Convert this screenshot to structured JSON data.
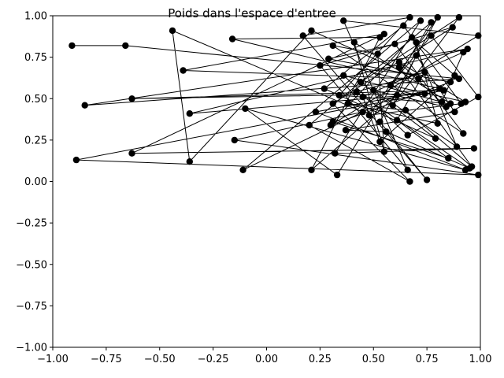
{
  "chart_data": {
    "type": "line",
    "title": "Poids dans l'espace d'entree",
    "xlabel": "",
    "ylabel": "",
    "xlim": [
      -1.0,
      1.0
    ],
    "ylim": [
      -1.0,
      1.0
    ],
    "xticks": [
      -1.0,
      -0.75,
      -0.5,
      -0.25,
      0.0,
      0.25,
      0.5,
      0.75,
      1.0
    ],
    "yticks": [
      -1.0,
      -0.75,
      -0.5,
      -0.25,
      0.0,
      0.25,
      0.5,
      0.75,
      1.0
    ],
    "xtick_labels": [
      "−1.00",
      "−0.75",
      "−0.50",
      "−0.25",
      "0.00",
      "0.25",
      "0.50",
      "0.75",
      "1.00"
    ],
    "ytick_labels": [
      "−1.00",
      "−0.75",
      "−0.50",
      "−0.25",
      "0.00",
      "0.25",
      "0.50",
      "0.75",
      "1.00"
    ],
    "grid": false,
    "line_color": "#000000",
    "marker": "circle",
    "series": [
      {
        "x": [
          -0.91,
          -0.66,
          0.9,
          -0.85,
          0.94,
          -0.36,
          0.74,
          -0.63,
          0.83,
          -0.89,
          0.99,
          -0.15,
          0.45,
          -0.44,
          -0.36,
          0.21,
          0.71,
          -0.39,
          0.55,
          -0.63,
          0.97,
          0.32,
          0.72,
          -0.11,
          0.61,
          0.21,
          0.53,
          -0.16,
          0.81,
          0.23,
          0.93,
          -0.1,
          0.33,
          0.77,
          0.2,
          0.67,
          0.31,
          0.87,
          0.25,
          0.66,
          0.36,
          0.99,
          0.3,
          0.86,
          0.29,
          0.6,
          0.92,
          0.31,
          0.52,
          0.55,
          0.41,
          0.86,
          0.34,
          0.67,
          0.17,
          0.75,
          0.53,
          0.8,
          0.48,
          0.91,
          0.64,
          0.27,
          0.79,
          0.44,
          0.9,
          0.59,
          0.7,
          0.88,
          0.37,
          0.56,
          0.95,
          0.42,
          0.74,
          0.61,
          0.85,
          0.31,
          0.68,
          0.89,
          0.5,
          0.84,
          0.62,
          0.93,
          0.58,
          0.77,
          0.99,
          0.66,
          0.36,
          0.82,
          0.92,
          0.45,
          0.53,
          0.88,
          0.7,
          0.8,
          0.38,
          0.65,
          0.96,
          0.62
        ],
        "y": [
          0.82,
          0.82,
          0.62,
          0.46,
          0.8,
          0.41,
          0.53,
          0.5,
          0.55,
          0.13,
          0.04,
          0.25,
          0.42,
          0.91,
          0.12,
          0.91,
          0.62,
          0.67,
          0.89,
          0.17,
          0.2,
          0.17,
          0.97,
          0.07,
          0.52,
          0.07,
          0.87,
          0.86,
          0.56,
          0.42,
          0.07,
          0.44,
          0.04,
          0.96,
          0.34,
          0.0,
          0.47,
          0.93,
          0.7,
          0.07,
          0.97,
          0.88,
          0.34,
          0.6,
          0.74,
          0.83,
          0.29,
          0.82,
          0.77,
          0.18,
          0.84,
          0.47,
          0.52,
          0.99,
          0.88,
          0.01,
          0.36,
          0.99,
          0.4,
          0.47,
          0.94,
          0.56,
          0.26,
          0.6,
          0.99,
          0.46,
          0.76,
          0.42,
          0.31,
          0.3,
          0.08,
          0.54,
          0.66,
          0.37,
          0.14,
          0.36,
          0.87,
          0.21,
          0.55,
          0.45,
          0.72,
          0.48,
          0.58,
          0.88,
          0.51,
          0.28,
          0.64,
          0.48,
          0.78,
          0.51,
          0.24,
          0.64,
          0.84,
          0.35,
          0.47,
          0.43,
          0.09,
          0.69
        ]
      }
    ]
  }
}
